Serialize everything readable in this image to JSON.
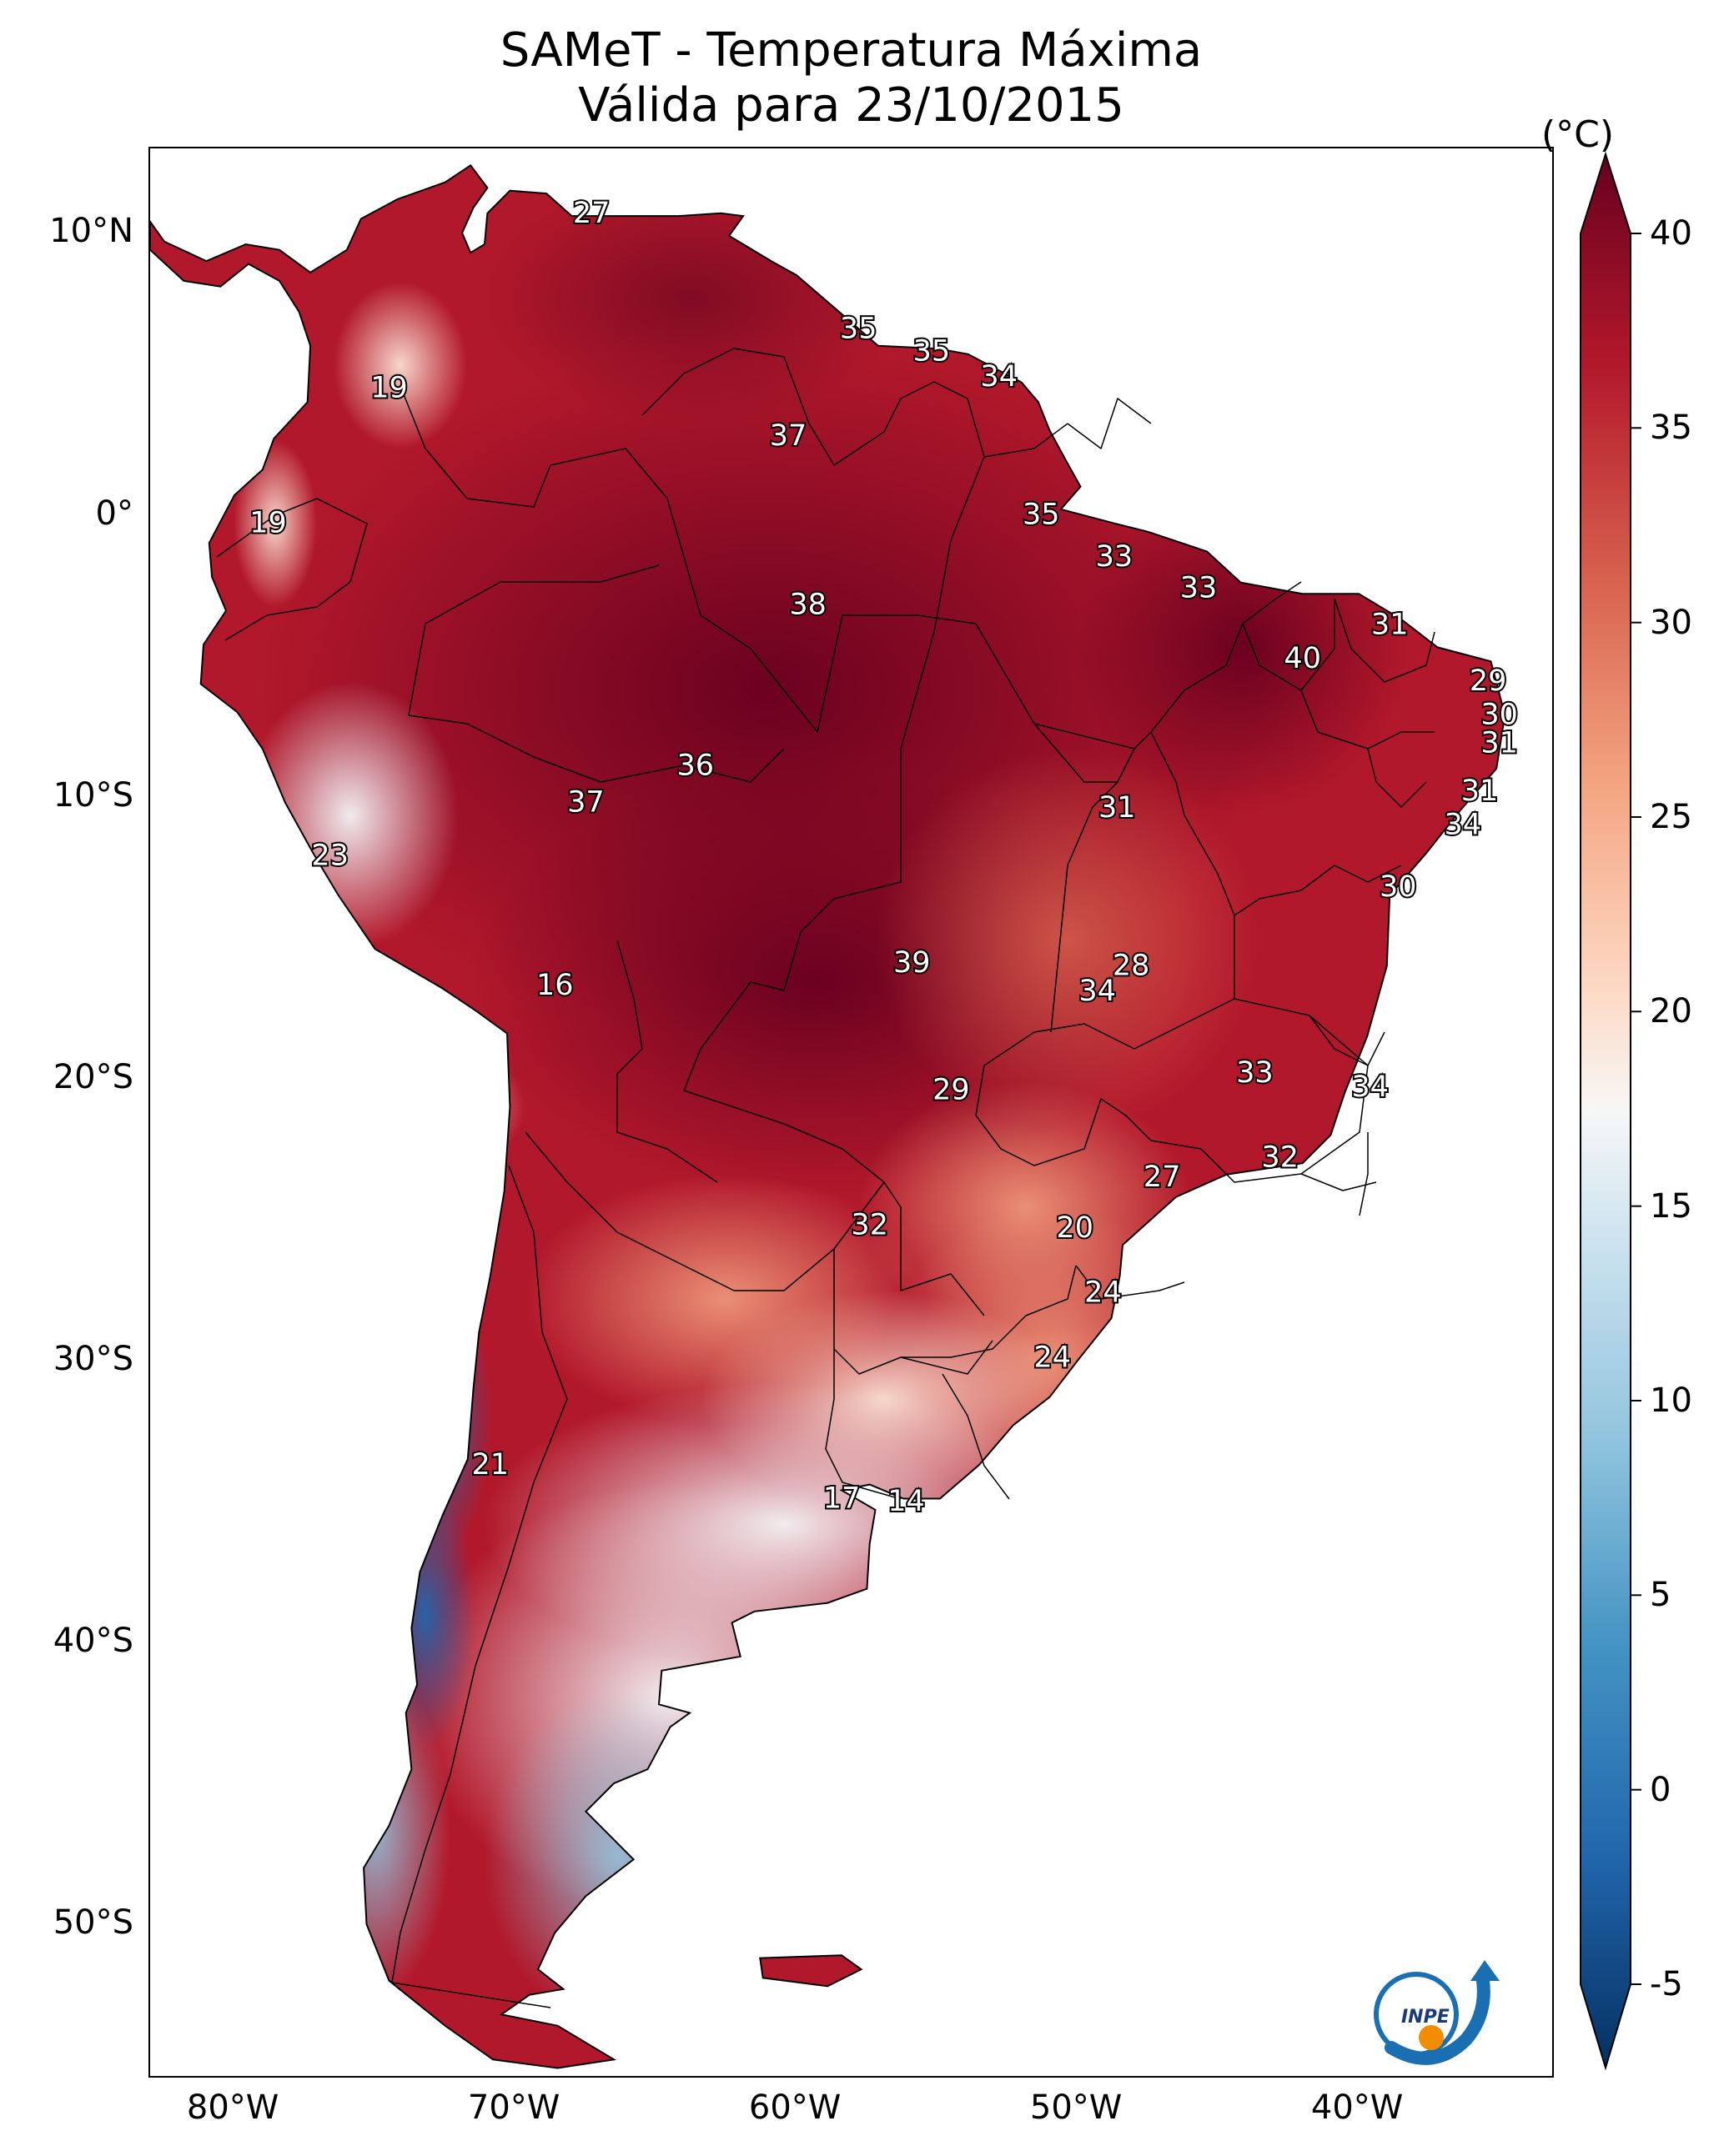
{
  "title": {
    "line1": "SAMeT - Temperatura Máxima",
    "line2": "Válida para 23/10/2015"
  },
  "map": {
    "lon_range": [
      -83,
      -33
    ],
    "lat_range": [
      -55.5,
      13
    ],
    "lat_ticks": [
      "10°N",
      "0°",
      "10°S",
      "20°S",
      "30°S",
      "40°S",
      "50°S"
    ],
    "lat_tick_values": [
      10,
      0,
      -10,
      -20,
      -30,
      -40,
      -50
    ],
    "lon_ticks": [
      "80°W",
      "70°W",
      "60°W",
      "50°W",
      "40°W"
    ],
    "lon_tick_values": [
      -80,
      -70,
      -60,
      -50,
      -40
    ]
  },
  "colorbar": {
    "unit": "(°C)",
    "min": -5,
    "max": 40,
    "tick_labels": [
      "40",
      "35",
      "30",
      "25",
      "20",
      "15",
      "10",
      "5",
      "0",
      "-5"
    ],
    "tick_values": [
      40,
      35,
      30,
      25,
      20,
      15,
      10,
      5,
      0,
      -5
    ],
    "colormap": "RdBu_r",
    "extend": "both"
  },
  "temperature_labels": [
    {
      "text": "27",
      "value": 27,
      "lon": -67.3,
      "lat": 10.7
    },
    {
      "text": "19",
      "value": 19,
      "lon": -74.5,
      "lat": 4.5
    },
    {
      "text": "35",
      "value": 35,
      "lon": -57.8,
      "lat": 6.6
    },
    {
      "text": "35",
      "value": 35,
      "lon": -55.2,
      "lat": 5.8
    },
    {
      "text": "34",
      "value": 34,
      "lon": -52.8,
      "lat": 4.9
    },
    {
      "text": "37",
      "value": 37,
      "lon": -60.3,
      "lat": 2.8
    },
    {
      "text": "19",
      "value": 19,
      "lon": -78.8,
      "lat": -0.3
    },
    {
      "text": "35",
      "value": 35,
      "lon": -51.3,
      "lat": 0.0
    },
    {
      "text": "33",
      "value": 33,
      "lon": -48.7,
      "lat": -1.5
    },
    {
      "text": "38",
      "value": 38,
      "lon": -59.6,
      "lat": -3.2
    },
    {
      "text": "33",
      "value": 33,
      "lon": -45.7,
      "lat": -2.6
    },
    {
      "text": "31",
      "value": 31,
      "lon": -38.9,
      "lat": -3.9
    },
    {
      "text": "40",
      "value": 40,
      "lon": -42.0,
      "lat": -5.1
    },
    {
      "text": "29",
      "value": 29,
      "lon": -35.4,
      "lat": -5.9
    },
    {
      "text": "30",
      "value": 30,
      "lon": -35.0,
      "lat": -7.1
    },
    {
      "text": "31",
      "value": 31,
      "lon": -35.0,
      "lat": -8.1
    },
    {
      "text": "36",
      "value": 36,
      "lon": -63.6,
      "lat": -8.9
    },
    {
      "text": "37",
      "value": 37,
      "lon": -67.5,
      "lat": -10.2
    },
    {
      "text": "31",
      "value": 31,
      "lon": -48.6,
      "lat": -10.4
    },
    {
      "text": "31",
      "value": 31,
      "lon": -35.7,
      "lat": -9.8
    },
    {
      "text": "34",
      "value": 34,
      "lon": -36.3,
      "lat": -11.0
    },
    {
      "text": "23",
      "value": 23,
      "lon": -76.6,
      "lat": -12.1
    },
    {
      "text": "30",
      "value": 30,
      "lon": -38.6,
      "lat": -13.2
    },
    {
      "text": "28",
      "value": 28,
      "lon": -48.1,
      "lat": -16.0
    },
    {
      "text": "39",
      "value": 39,
      "lon": -55.9,
      "lat": -15.9
    },
    {
      "text": "34",
      "value": 34,
      "lon": -49.3,
      "lat": -16.9
    },
    {
      "text": "16",
      "value": 16,
      "lon": -68.6,
      "lat": -16.7
    },
    {
      "text": "33",
      "value": 33,
      "lon": -43.7,
      "lat": -19.8
    },
    {
      "text": "34",
      "value": 34,
      "lon": -39.6,
      "lat": -20.3
    },
    {
      "text": "29",
      "value": 29,
      "lon": -54.5,
      "lat": -20.4
    },
    {
      "text": "32",
      "value": 32,
      "lon": -42.8,
      "lat": -22.8
    },
    {
      "text": "27",
      "value": 27,
      "lon": -47.0,
      "lat": -23.5
    },
    {
      "text": "32",
      "value": 32,
      "lon": -57.4,
      "lat": -25.2
    },
    {
      "text": "20",
      "value": 20,
      "lon": -50.1,
      "lat": -25.3
    },
    {
      "text": "24",
      "value": 24,
      "lon": -49.1,
      "lat": -27.6
    },
    {
      "text": "24",
      "value": 24,
      "lon": -50.9,
      "lat": -29.9
    },
    {
      "text": "21",
      "value": 21,
      "lon": -70.9,
      "lat": -33.7
    },
    {
      "text": "17",
      "value": 17,
      "lon": -58.4,
      "lat": -34.9
    },
    {
      "text": "14",
      "value": 14,
      "lon": -56.1,
      "lat": -35.0
    }
  ],
  "logo": {
    "text": "INPE"
  }
}
